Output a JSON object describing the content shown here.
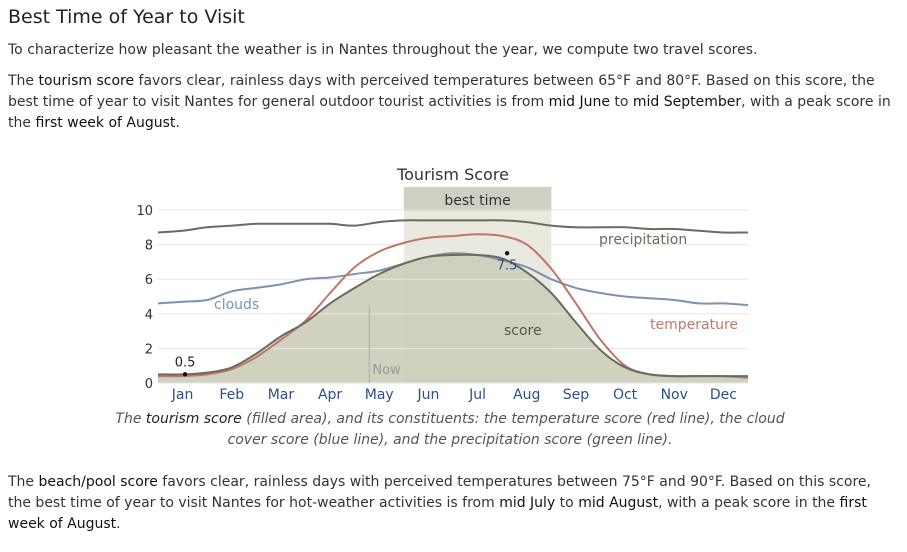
{
  "heading": "Best Time of Year to Visit",
  "intro": "To characterize how pleasant the weather is in Nantes throughout the year, we compute two travel scores.",
  "tourism_paragraph": {
    "pre": "The ",
    "term": "tourism score",
    "mid1": " favors clear, rainless days with perceived temperatures between 65°F and 80°F. Based on this score, the best time of year to visit Nantes for general outdoor tourist activities is from ",
    "from": "mid June",
    "mid2": " to ",
    "to": "mid September",
    "mid3": ", with a peak score in the ",
    "peak": "first week of August",
    "end": "."
  },
  "caption": {
    "pre": "The ",
    "term": "tourism score",
    "rest": " (filled area), and its constituents: the temperature score (red line), the cloud cover score (blue line), and the precipitation score (green line)."
  },
  "beach_paragraph": {
    "pre": "The ",
    "term": "beach/pool score",
    "mid1": " favors clear, rainless days with perceived temperatures between 75°F and 90°F. Based on this score, the best time of year to visit Nantes for hot-weather activities is from ",
    "from": "mid July",
    "mid2": " to ",
    "to": "mid August",
    "mid3": ", with a peak score in the ",
    "peak": "first week of August",
    "end": "."
  },
  "chart_data": {
    "type": "area",
    "title": "Tourism Score",
    "x_unit": "month",
    "xlim": [
      0,
      12
    ],
    "ylim": [
      0,
      10
    ],
    "y_ticks": [
      0,
      2,
      4,
      6,
      8,
      10
    ],
    "months": [
      "Jan",
      "Feb",
      "Mar",
      "Apr",
      "May",
      "Jun",
      "Jul",
      "Aug",
      "Sep",
      "Oct",
      "Nov",
      "Dec"
    ],
    "x": [
      0,
      0.5,
      1,
      1.5,
      2,
      2.5,
      3,
      3.5,
      4,
      4.5,
      5,
      5.5,
      6,
      6.5,
      7,
      7.5,
      8,
      8.5,
      9,
      9.5,
      10,
      10.5,
      11,
      11.5,
      12
    ],
    "series": [
      {
        "name": "score",
        "color": "#6b6b5e",
        "fill": "#cfcfbd",
        "values": [
          0.5,
          0.5,
          0.6,
          0.9,
          1.7,
          2.7,
          3.5,
          4.6,
          5.5,
          6.3,
          6.9,
          7.3,
          7.4,
          7.4,
          7.2,
          6.4,
          5.2,
          3.5,
          1.9,
          0.9,
          0.5,
          0.4,
          0.4,
          0.4,
          0.4
        ]
      },
      {
        "name": "temperature",
        "color": "#c0776a",
        "values": [
          0.4,
          0.4,
          0.5,
          0.8,
          1.5,
          2.5,
          3.6,
          5.2,
          6.7,
          7.6,
          8.1,
          8.4,
          8.5,
          8.6,
          8.5,
          8.0,
          6.6,
          4.6,
          2.5,
          1.0,
          0.5,
          0.4,
          0.4,
          0.4,
          0.3
        ]
      },
      {
        "name": "clouds",
        "color": "#7d92ad",
        "values": [
          4.6,
          4.7,
          4.8,
          5.3,
          5.5,
          5.7,
          6.0,
          6.1,
          6.3,
          6.5,
          6.9,
          7.3,
          7.5,
          7.4,
          7.1,
          6.7,
          6.0,
          5.5,
          5.2,
          5.0,
          4.9,
          4.8,
          4.6,
          4.6,
          4.5
        ]
      },
      {
        "name": "precipitation",
        "color": "#6b6b5e",
        "values": [
          8.7,
          8.8,
          9.0,
          9.1,
          9.2,
          9.2,
          9.2,
          9.2,
          9.1,
          9.3,
          9.4,
          9.4,
          9.4,
          9.4,
          9.4,
          9.3,
          9.1,
          9.0,
          9.0,
          9.0,
          8.9,
          8.9,
          8.8,
          8.7,
          8.7
        ]
      }
    ],
    "annotations": {
      "best_time": {
        "label": "best time",
        "start": 5.0,
        "end": 8.0
      },
      "now": {
        "label": "Now",
        "x": 4.3
      },
      "min_label": {
        "text": "0.5",
        "x": 0.1,
        "y": 0.5
      },
      "peak_label": {
        "text": "7.5",
        "x": 7.1,
        "y": 7.5
      }
    }
  }
}
